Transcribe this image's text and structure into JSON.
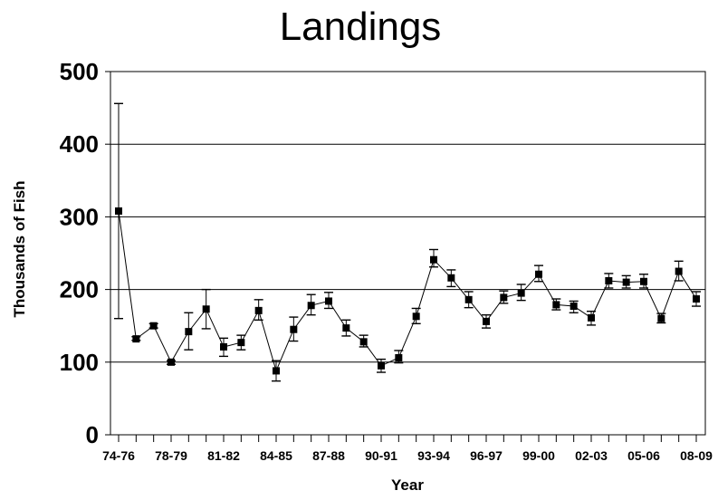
{
  "chart_data": {
    "type": "line",
    "title": "Landings",
    "xlabel": "Year",
    "ylabel": "Thousands of Fish",
    "ylim": [
      0,
      500
    ],
    "yticks": [
      "0",
      "100",
      "200",
      "300",
      "400",
      "500"
    ],
    "grid": "horizontal",
    "x_tick_labels": [
      "74-76",
      "78-79",
      "81-82",
      "84-85",
      "87-88",
      "90-91",
      "93-94",
      "96-97",
      "99-00",
      "02-03",
      "05-06",
      "08-09"
    ],
    "series": [
      {
        "values": [
          308,
          132,
          150,
          100,
          142,
          173,
          121,
          127,
          171,
          88,
          145,
          178,
          184,
          147,
          128,
          95,
          106,
          163,
          241,
          216,
          186,
          156,
          189,
          195,
          221,
          179,
          177,
          161,
          212,
          210,
          211,
          160,
          225,
          187
        ],
        "error_low": [
          160,
          130,
          147,
          97,
          117,
          146,
          108,
          117,
          158,
          74,
          129,
          165,
          174,
          136,
          121,
          86,
          99,
          153,
          231,
          204,
          175,
          147,
          181,
          185,
          211,
          172,
          168,
          151,
          202,
          202,
          202,
          154,
          212,
          177
        ],
        "error_high": [
          456,
          135,
          153,
          102,
          168,
          200,
          133,
          137,
          186,
          102,
          162,
          193,
          196,
          158,
          137,
          104,
          116,
          174,
          255,
          227,
          197,
          165,
          198,
          207,
          233,
          187,
          184,
          170,
          222,
          219,
          221,
          167,
          239,
          197
        ]
      }
    ],
    "colors": {
      "line": "#000000",
      "marker": "#000000",
      "grid": "#000000"
    }
  }
}
